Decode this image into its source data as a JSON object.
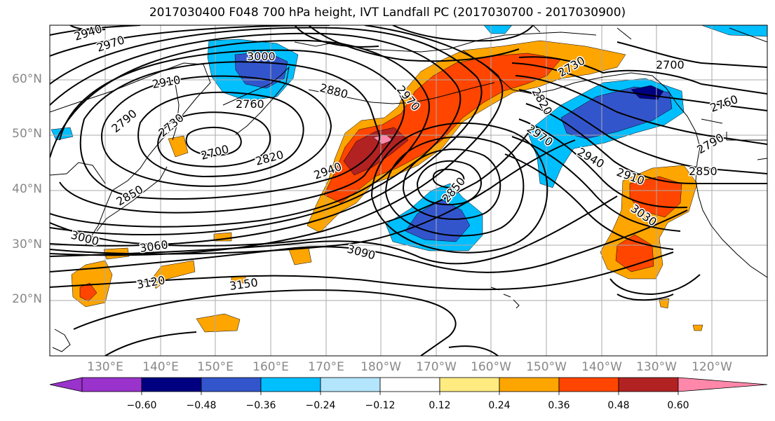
{
  "title": "2017030400 F048 700 hPa height, IVT Landfall PC (2017030700 - 2017030900)",
  "lat_labels": [
    "60°N",
    "50°N",
    "40°N",
    "30°N",
    "20°N"
  ],
  "lon_labels": [
    "130°E",
    "140°E",
    "150°E",
    "160°E",
    "170°E",
    "180°W",
    "170°W",
    "160°W",
    "150°W",
    "140°W",
    "130°W",
    "120°W"
  ],
  "contour_labels": [
    "2940",
    "2970",
    "3000",
    "2910",
    "2760",
    "2880",
    "2970",
    "2790",
    "2730",
    "2700",
    "2820",
    "2940",
    "2850",
    "2850",
    "3000",
    "3060",
    "3090",
    "3120",
    "3150",
    "2970",
    "2820",
    "2730",
    "2700",
    "2760",
    "2790",
    "2850",
    "2940",
    "2910",
    "3030"
  ],
  "colorbar": {
    "ticks": [
      "−0.60",
      "−0.48",
      "−0.36",
      "−0.24",
      "−0.12",
      "0.12",
      "0.24",
      "0.36",
      "0.48",
      "0.60"
    ],
    "colors": [
      "#9933cc",
      "#000080",
      "#3355cc",
      "#00bfff",
      "#b3e5fc",
      "#ffffff",
      "#ffeb80",
      "#ffa500",
      "#ff4500",
      "#b22222",
      "#ff88aa"
    ]
  }
}
